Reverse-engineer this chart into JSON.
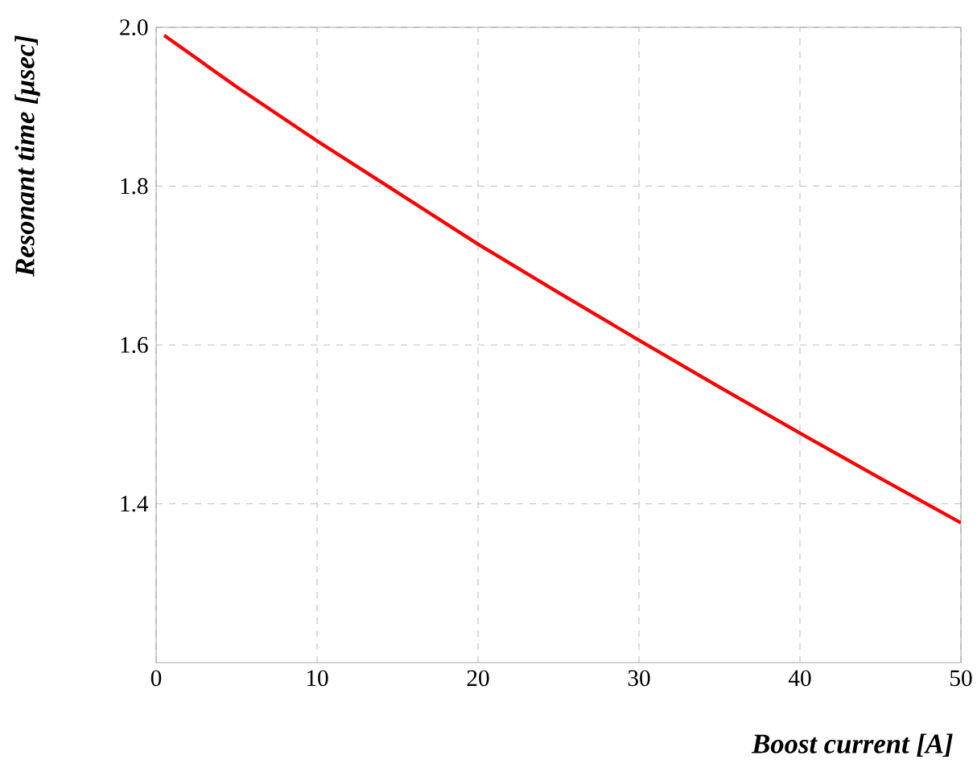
{
  "chart_data": {
    "type": "line",
    "xlabel": "Boost current [A]",
    "ylabel": "Resonant time [μsec]",
    "x": [
      0.5,
      5,
      10,
      15,
      20,
      25,
      30,
      35,
      40,
      45,
      50
    ],
    "series": [
      {
        "color": "#ff0000",
        "values": [
          1.99,
          1.925,
          1.857,
          1.792,
          1.727,
          1.666,
          1.606,
          1.547,
          1.489,
          1.432,
          1.376
        ]
      }
    ],
    "xlim": [
      0,
      50
    ],
    "xticks": [
      0,
      10,
      20,
      30,
      40,
      50
    ],
    "ylim": [
      1.2,
      2.0
    ],
    "yticks": [
      1.4,
      1.6,
      1.8,
      {
        "value": 2,
        "label": "2.0"
      }
    ],
    "grid": true,
    "marker": "none",
    "line_style": "solid"
  }
}
